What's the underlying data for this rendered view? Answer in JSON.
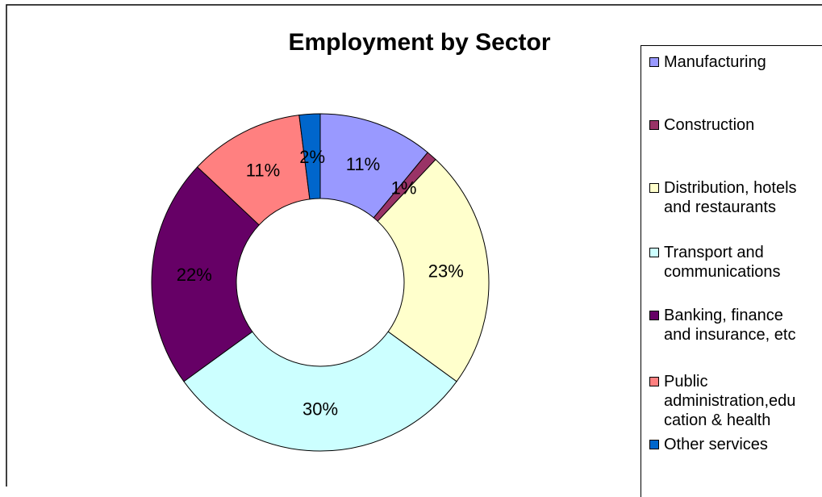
{
  "chart_data": {
    "type": "pie",
    "title": "Employment by Sector",
    "legend_position": "right",
    "series": [
      {
        "name": "Manufacturing",
        "value": 11,
        "label": "11%",
        "color": "#9999ff"
      },
      {
        "name": "Construction",
        "value": 1,
        "label": "1%",
        "color": "#993366"
      },
      {
        "name": "Distribution, hotels\nand restaurants",
        "value": 23,
        "label": "23%",
        "color": "#ffffcc"
      },
      {
        "name": "Transport and\ncommunications",
        "value": 30,
        "label": "30%",
        "color": "#ccffff"
      },
      {
        "name": "Banking, finance\nand insurance, etc",
        "value": 22,
        "label": "22%",
        "color": "#660066"
      },
      {
        "name": "Public\nadministration,edu\ncation & health",
        "value": 11,
        "label": "11%",
        "color": "#ff8080"
      },
      {
        "name": "Other services",
        "value": 2,
        "label": "2%",
        "color": "#0066cc"
      }
    ]
  }
}
